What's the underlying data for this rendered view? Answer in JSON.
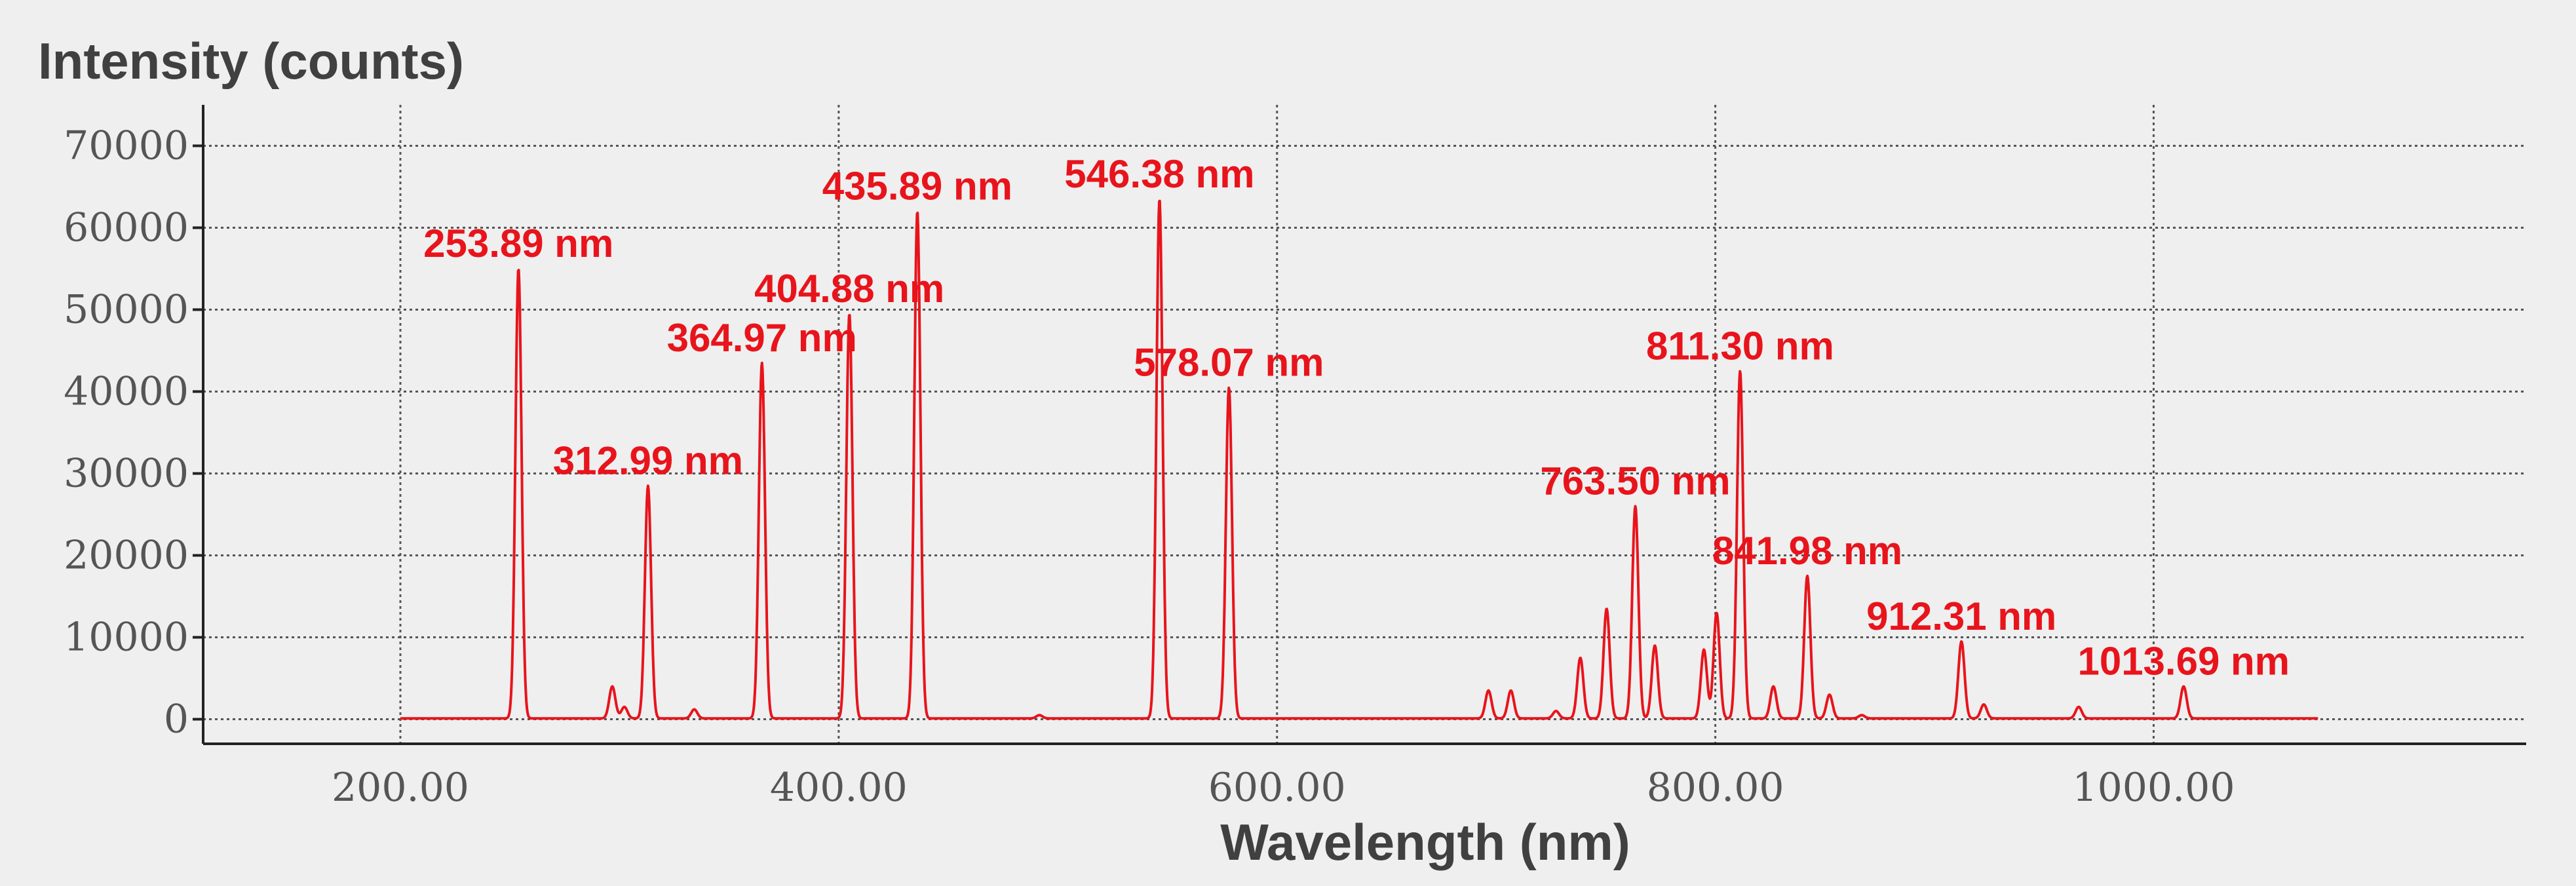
{
  "chart_data": {
    "type": "line",
    "xlabel": "Wavelength (nm)",
    "ylabel": "Intensity (counts)",
    "xlim": [
      110,
      1170
    ],
    "ylim": [
      -3000,
      75000
    ],
    "x_ticks": [
      200,
      400,
      600,
      800,
      1000
    ],
    "x_tick_labels": [
      "200.00",
      "400.00",
      "600.00",
      "800.00",
      "1000.00"
    ],
    "y_ticks": [
      0,
      10000,
      20000,
      30000,
      40000,
      50000,
      60000,
      70000
    ],
    "y_tick_labels": [
      "0",
      "10000",
      "20000",
      "30000",
      "40000",
      "50000",
      "60000",
      "70000"
    ],
    "grid": true,
    "line_color": "#e8141c",
    "label_color": "#e8141c",
    "series": [
      {
        "x_range": [
          200,
          1075
        ],
        "baseline": 100,
        "peaks": [
          {
            "x": 253.89,
            "y": 55000
          },
          {
            "x": 296.7,
            "y": 4000
          },
          {
            "x": 302.2,
            "y": 1500
          },
          {
            "x": 312.99,
            "y": 28500
          },
          {
            "x": 334.1,
            "y": 1200
          },
          {
            "x": 364.97,
            "y": 43500
          },
          {
            "x": 404.88,
            "y": 49500
          },
          {
            "x": 435.89,
            "y": 62000
          },
          {
            "x": 491.6,
            "y": 500
          },
          {
            "x": 546.38,
            "y": 63500
          },
          {
            "x": 578.07,
            "y": 40500
          },
          {
            "x": 696.5,
            "y": 3500
          },
          {
            "x": 706.7,
            "y": 3500
          },
          {
            "x": 727.3,
            "y": 1000
          },
          {
            "x": 738.4,
            "y": 7500
          },
          {
            "x": 750.4,
            "y": 13500
          },
          {
            "x": 763.5,
            "y": 26000
          },
          {
            "x": 772.4,
            "y": 9000
          },
          {
            "x": 794.8,
            "y": 8500
          },
          {
            "x": 800.6,
            "y": 13000
          },
          {
            "x": 811.3,
            "y": 42500
          },
          {
            "x": 826.5,
            "y": 4000
          },
          {
            "x": 841.98,
            "y": 17500
          },
          {
            "x": 852.1,
            "y": 3000
          },
          {
            "x": 866.8,
            "y": 500
          },
          {
            "x": 912.31,
            "y": 9500
          },
          {
            "x": 922.5,
            "y": 1800
          },
          {
            "x": 965.8,
            "y": 1500
          },
          {
            "x": 1013.69,
            "y": 4000
          }
        ]
      }
    ],
    "annotations": [
      {
        "text": "253.89 nm",
        "x": 253.89,
        "y": 55000
      },
      {
        "text": "312.99 nm",
        "x": 312.99,
        "y": 28500
      },
      {
        "text": "364.97 nm",
        "x": 364.97,
        "y": 43500
      },
      {
        "text": "404.88 nm",
        "x": 404.88,
        "y": 49500
      },
      {
        "text": "435.89 nm",
        "x": 435.89,
        "y": 62000
      },
      {
        "text": "546.38 nm",
        "x": 546.38,
        "y": 63500
      },
      {
        "text": "578.07 nm",
        "x": 578.07,
        "y": 40500
      },
      {
        "text": "763.50 nm",
        "x": 763.5,
        "y": 26000
      },
      {
        "text": "811.30 nm",
        "x": 811.3,
        "y": 42500
      },
      {
        "text": "841.98 nm",
        "x": 841.98,
        "y": 17500
      },
      {
        "text": "912.31 nm",
        "x": 912.31,
        "y": 9500
      },
      {
        "text": "1013.69 nm",
        "x": 1013.69,
        "y": 4000
      }
    ]
  }
}
